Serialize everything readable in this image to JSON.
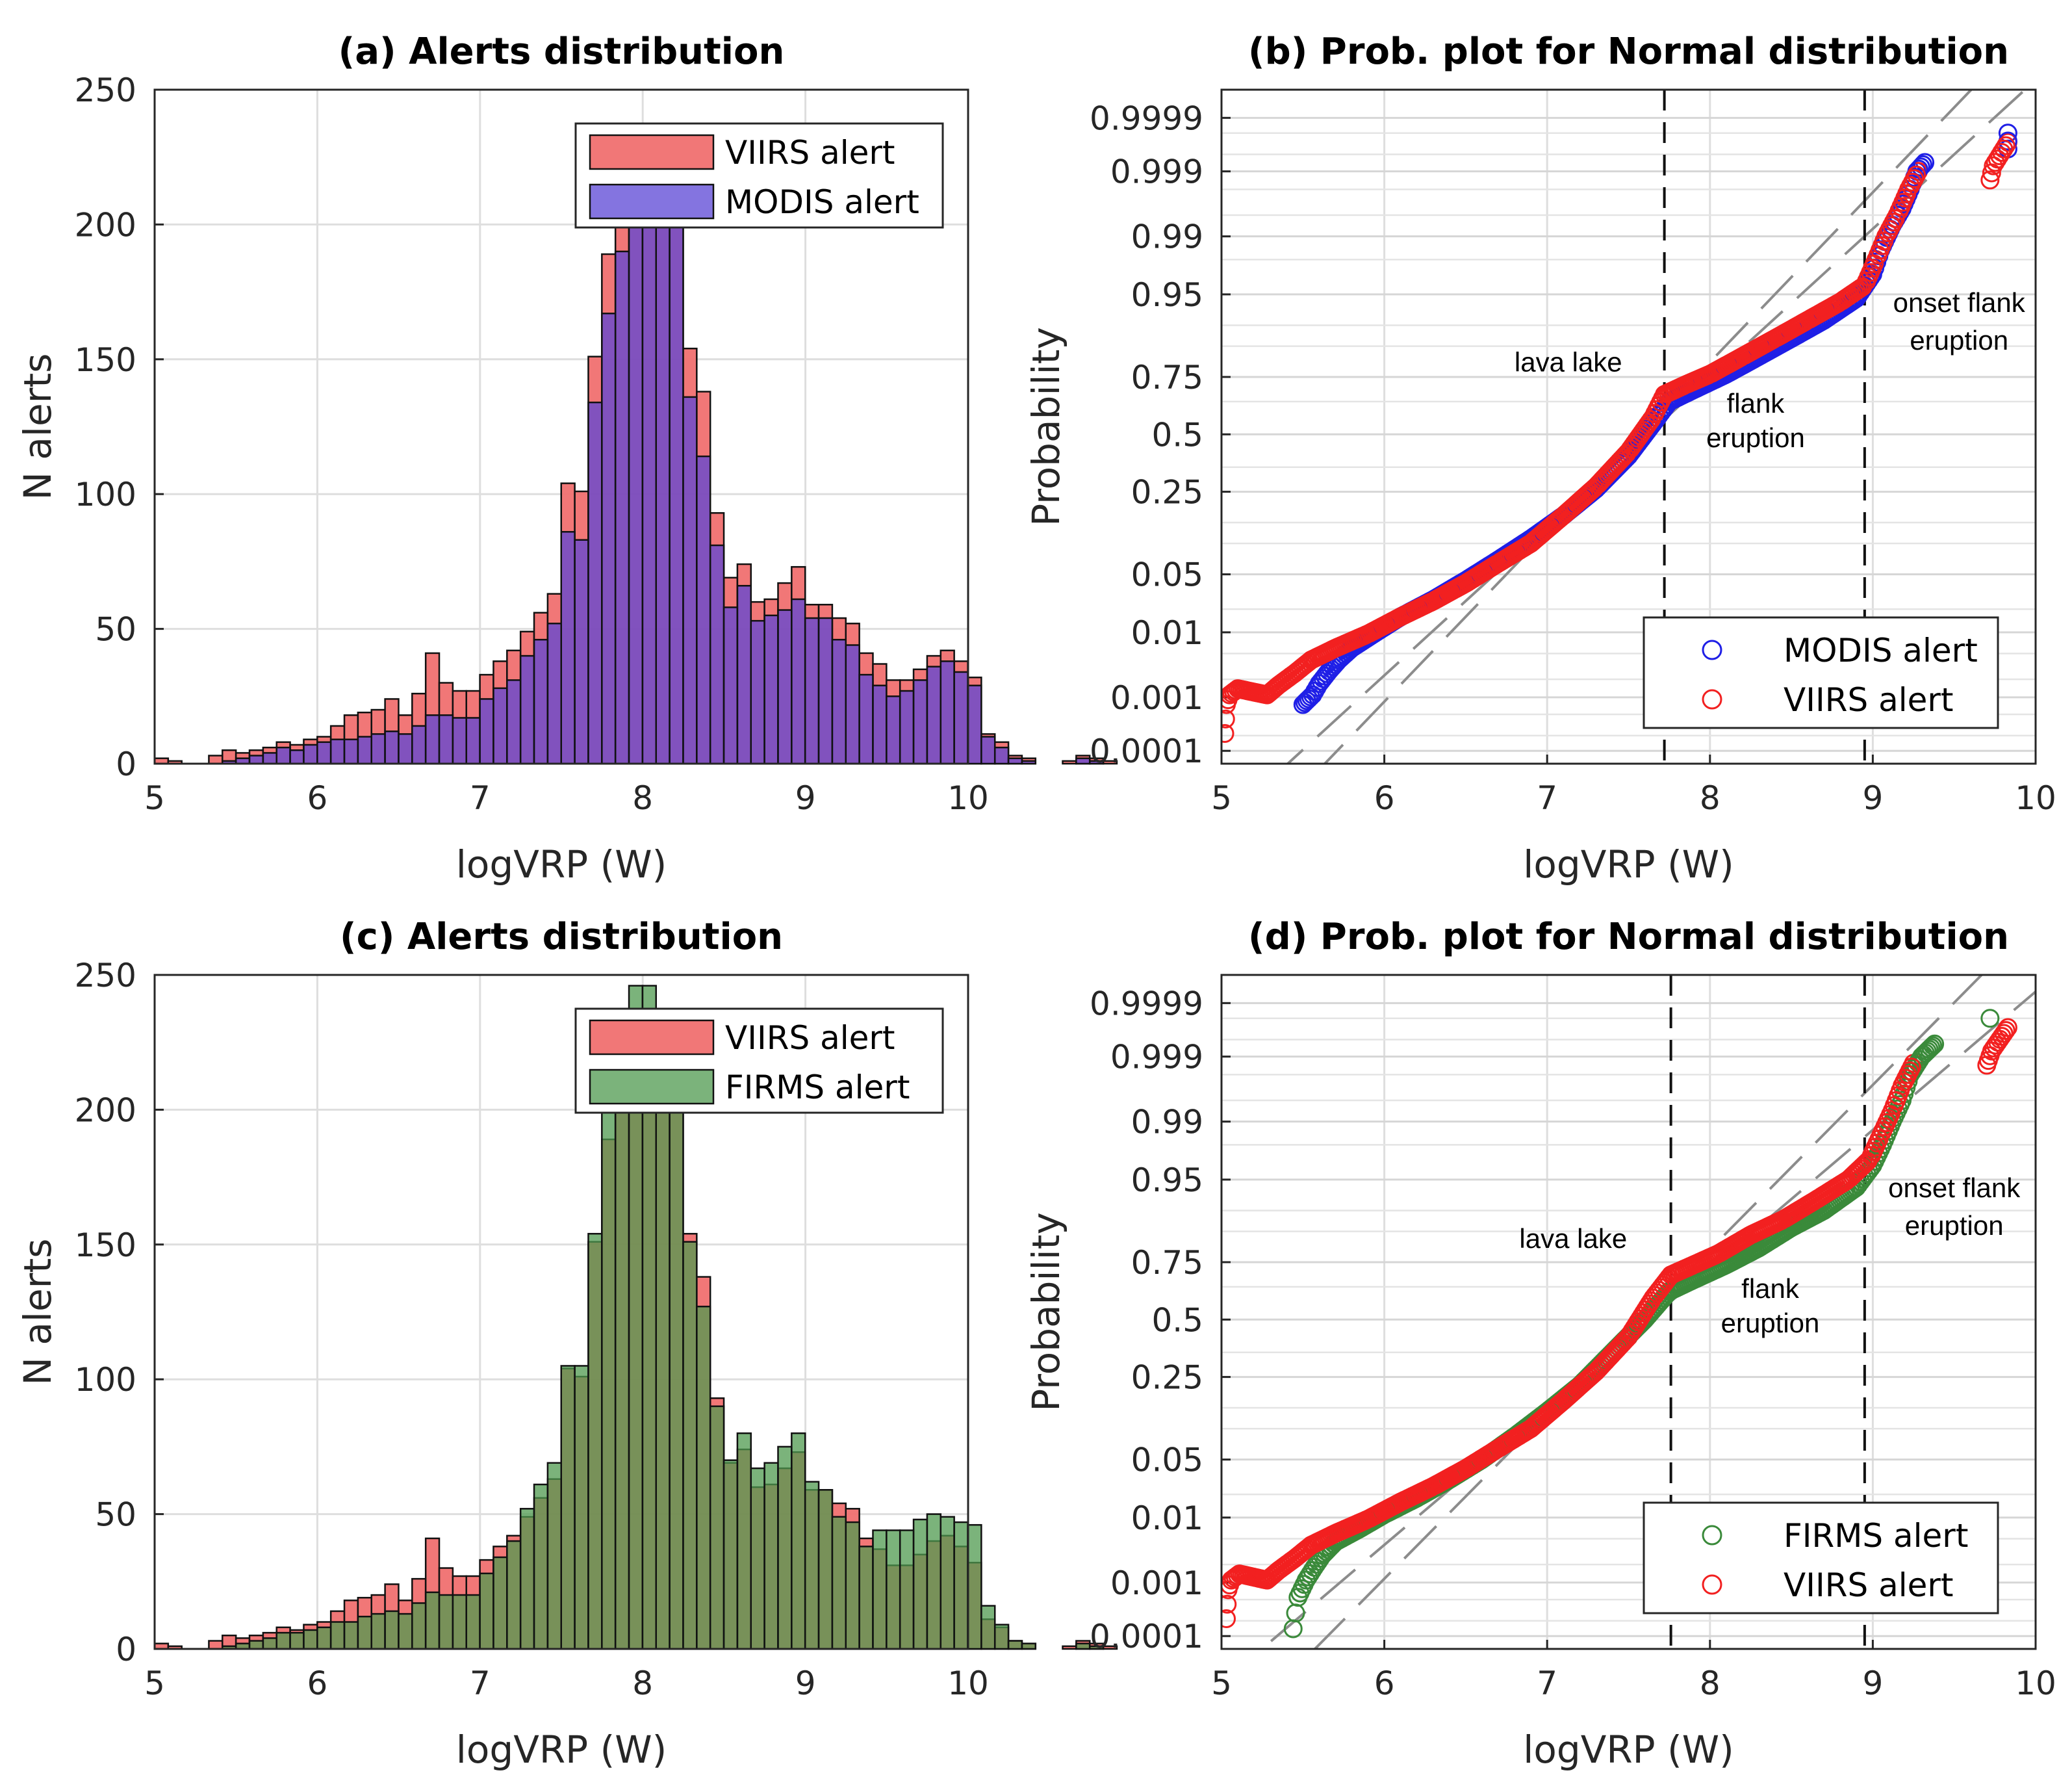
{
  "chart_data": [
    {
      "id": "a",
      "type": "bar",
      "title": "(a) Alerts distribution",
      "xlabel": "logVRP (W)",
      "ylabel": "N alerts",
      "xlim": [
        5,
        10
      ],
      "ylim": [
        0,
        250
      ],
      "xticks": [
        "5",
        "6",
        "7",
        "8",
        "9",
        "10"
      ],
      "yticks": [
        "0",
        "50",
        "100",
        "150",
        "200",
        "250"
      ],
      "grid": true,
      "legend_position": "top-right",
      "bin_start": 5.0,
      "bin_width": 0.0833,
      "series": [
        {
          "name": "VIIRS alert",
          "color": "#f07070",
          "values": [
            2,
            1,
            0,
            0,
            3,
            5,
            4,
            5,
            6,
            8,
            7,
            9,
            10,
            14,
            18,
            19,
            20,
            24,
            18,
            26,
            41,
            30,
            27,
            27,
            33,
            38,
            42,
            49,
            56,
            63,
            104,
            101,
            151,
            189,
            205,
            219,
            228,
            223,
            209,
            154,
            138,
            93,
            69,
            74,
            60,
            61,
            67,
            73,
            59,
            59,
            54,
            52,
            41,
            37,
            31,
            31,
            35,
            40,
            42,
            38,
            32,
            11,
            8,
            3,
            2,
            0,
            0,
            1,
            3,
            2,
            1
          ]
        },
        {
          "name": "MODIS alert",
          "color": "#5b46d6",
          "values": [
            0,
            0,
            0,
            0,
            0,
            1,
            2,
            3,
            4,
            6,
            5,
            7,
            8,
            9,
            9,
            10,
            11,
            12,
            11,
            14,
            18,
            18,
            17,
            17,
            24,
            28,
            31,
            40,
            46,
            52,
            86,
            83,
            134,
            167,
            190,
            208,
            210,
            214,
            199,
            136,
            114,
            81,
            58,
            66,
            53,
            55,
            57,
            61,
            54,
            54,
            46,
            44,
            33,
            29,
            25,
            27,
            31,
            36,
            38,
            34,
            29,
            10,
            6,
            2,
            1,
            0,
            0,
            0,
            2,
            1,
            0
          ]
        }
      ]
    },
    {
      "id": "b",
      "type": "scatter",
      "title": "(b) Prob. plot for Normal distribution",
      "xlabel": "logVRP (W)",
      "ylabel": "Probability",
      "xlim": [
        5,
        10
      ],
      "xticks": [
        "5",
        "6",
        "7",
        "8",
        "9",
        "10"
      ],
      "yticks": [
        "0.0001",
        "0.001",
        "0.01",
        "0.05",
        "0.25",
        "0.5",
        "0.75",
        "0.95",
        "0.99",
        "0.999",
        "0.9999"
      ],
      "y_scale": "normal-probability",
      "grid": true,
      "legend_position": "bottom-right",
      "vlines": [
        7.72,
        8.95
      ],
      "annotations": [
        {
          "text": "lava lake",
          "x": 7.13,
          "p": 0.77
        },
        {
          "text": "flank",
          "x": 8.28,
          "p": 0.6
        },
        {
          "text": "eruption",
          "x": 8.28,
          "p": 0.44
        },
        {
          "text": "onset flank",
          "x": 9.53,
          "p": 0.925
        },
        {
          "text": "eruption",
          "x": 9.53,
          "p": 0.84
        }
      ],
      "series": [
        {
          "name": "MODIS alert",
          "color": "#1f1fe6",
          "marker": "circle-open",
          "x": [
            5.5,
            5.56,
            5.6,
            5.66,
            5.72,
            5.8,
            5.95,
            6.1,
            6.3,
            6.5,
            6.7,
            6.9,
            7.1,
            7.3,
            7.5,
            7.65,
            7.75,
            7.9,
            8.1,
            8.3,
            8.5,
            8.7,
            8.9,
            9.0,
            9.05,
            9.12,
            9.18,
            9.23,
            9.27,
            9.32,
            9.83,
            9.83
          ],
          "p": [
            0.00075,
            0.0011,
            0.0017,
            0.0027,
            0.004,
            0.006,
            0.01,
            0.016,
            0.026,
            0.043,
            0.07,
            0.11,
            0.17,
            0.26,
            0.4,
            0.55,
            0.65,
            0.7,
            0.76,
            0.82,
            0.87,
            0.91,
            0.945,
            0.97,
            0.985,
            0.993,
            0.996,
            0.998,
            0.999,
            0.9993,
            0.9996,
            0.9998
          ]
        },
        {
          "name": "VIIRS alert",
          "color": "#f22020",
          "marker": "circle-open",
          "x": [
            5.02,
            5.03,
            5.05,
            5.1,
            5.28,
            5.35,
            5.45,
            5.55,
            5.7,
            5.9,
            6.1,
            6.3,
            6.5,
            6.7,
            6.9,
            7.1,
            7.3,
            7.5,
            7.65,
            7.72,
            7.85,
            8.0,
            8.2,
            8.4,
            8.6,
            8.8,
            8.95,
            9.02,
            9.08,
            9.15,
            9.22,
            9.28,
            9.72,
            9.74,
            9.83
          ],
          "p": [
            0.00022,
            0.00075,
            0.0011,
            0.0014,
            0.0011,
            0.0016,
            0.0025,
            0.004,
            0.006,
            0.0095,
            0.016,
            0.025,
            0.04,
            0.065,
            0.1,
            0.17,
            0.27,
            0.42,
            0.58,
            0.68,
            0.72,
            0.76,
            0.82,
            0.87,
            0.91,
            0.94,
            0.96,
            0.98,
            0.99,
            0.995,
            0.998,
            0.999,
            0.9986,
            0.9992,
            0.9997
          ]
        }
      ]
    },
    {
      "id": "c",
      "type": "bar",
      "title": "(c) Alerts distribution",
      "xlabel": "logVRP (W)",
      "ylabel": "N alerts",
      "xlim": [
        5,
        10
      ],
      "ylim": [
        0,
        250
      ],
      "xticks": [
        "5",
        "6",
        "7",
        "8",
        "9",
        "10"
      ],
      "yticks": [
        "0",
        "50",
        "100",
        "150",
        "200",
        "250"
      ],
      "grid": true,
      "legend_position": "top-right",
      "bin_start": 5.0,
      "bin_width": 0.0833,
      "series": [
        {
          "name": "VIIRS alert",
          "color": "#f07070",
          "values": [
            2,
            1,
            0,
            0,
            3,
            5,
            4,
            5,
            6,
            8,
            7,
            9,
            10,
            14,
            18,
            19,
            20,
            24,
            18,
            26,
            41,
            30,
            27,
            27,
            33,
            38,
            42,
            49,
            56,
            63,
            104,
            101,
            151,
            189,
            205,
            219,
            228,
            223,
            209,
            154,
            138,
            93,
            69,
            74,
            60,
            61,
            67,
            73,
            59,
            59,
            54,
            52,
            41,
            37,
            31,
            31,
            35,
            40,
            42,
            38,
            32,
            11,
            8,
            3,
            2,
            0,
            0,
            1,
            3,
            2,
            1
          ]
        },
        {
          "name": "FIRMS alert",
          "color": "#4f9a4f",
          "values": [
            0,
            0,
            0,
            0,
            0,
            1,
            2,
            3,
            4,
            6,
            6,
            7,
            8,
            10,
            10,
            12,
            13,
            14,
            13,
            17,
            21,
            20,
            20,
            20,
            28,
            34,
            40,
            52,
            61,
            69,
            105,
            105,
            154,
            207,
            217,
            246,
            246,
            224,
            203,
            151,
            127,
            90,
            70,
            80,
            67,
            69,
            75,
            80,
            62,
            59,
            49,
            47,
            38,
            44,
            44,
            44,
            48,
            50,
            49,
            47,
            46,
            16,
            9,
            3,
            2,
            0,
            0,
            0,
            2,
            1,
            0
          ]
        }
      ]
    },
    {
      "id": "d",
      "type": "scatter",
      "title": "(d) Prob. plot for Normal distribution",
      "xlabel": "logVRP (W)",
      "ylabel": "Probability",
      "xlim": [
        5,
        10
      ],
      "xticks": [
        "5",
        "6",
        "7",
        "8",
        "9",
        "10"
      ],
      "yticks": [
        "0.0001",
        "0.001",
        "0.01",
        "0.05",
        "0.25",
        "0.5",
        "0.75",
        "0.95",
        "0.99",
        "0.999",
        "0.9999"
      ],
      "y_scale": "normal-probability",
      "grid": true,
      "legend_position": "bottom-right",
      "vlines": [
        7.76,
        8.95
      ],
      "annotations": [
        {
          "text": "lava lake",
          "x": 7.16,
          "p": 0.8
        },
        {
          "text": "flank",
          "x": 8.37,
          "p": 0.6
        },
        {
          "text": "eruption",
          "x": 8.37,
          "p": 0.44
        },
        {
          "text": "onset flank",
          "x": 9.5,
          "p": 0.925
        },
        {
          "text": "eruption",
          "x": 9.5,
          "p": 0.84
        }
      ],
      "series": [
        {
          "name": "FIRMS alert",
          "color": "#3a8a3a",
          "marker": "circle-open",
          "x": [
            5.44,
            5.47,
            5.52,
            5.57,
            5.62,
            5.7,
            5.85,
            6.0,
            6.2,
            6.4,
            6.6,
            6.8,
            7.0,
            7.2,
            7.4,
            7.6,
            7.75,
            7.9,
            8.1,
            8.3,
            8.5,
            8.7,
            8.9,
            9.0,
            9.06,
            9.12,
            9.18,
            9.23,
            9.3,
            9.38,
            9.72
          ],
          "p": [
            0.00014,
            0.00055,
            0.0011,
            0.0018,
            0.0028,
            0.0045,
            0.007,
            0.011,
            0.018,
            0.03,
            0.05,
            0.085,
            0.14,
            0.22,
            0.35,
            0.5,
            0.63,
            0.68,
            0.74,
            0.8,
            0.86,
            0.9,
            0.94,
            0.965,
            0.98,
            0.99,
            0.995,
            0.998,
            0.999,
            0.9994,
            0.9998
          ]
        },
        {
          "name": "VIIRS alert",
          "color": "#f22020",
          "marker": "circle-open",
          "x": [
            5.03,
            5.04,
            5.06,
            5.11,
            5.28,
            5.35,
            5.45,
            5.55,
            5.7,
            5.9,
            6.1,
            6.3,
            6.5,
            6.7,
            6.9,
            7.1,
            7.3,
            7.5,
            7.65,
            7.76,
            7.9,
            8.05,
            8.25,
            8.45,
            8.65,
            8.85,
            8.98,
            9.05,
            9.12,
            9.18,
            9.25,
            9.7,
            9.73,
            9.83
          ],
          "p": [
            0.00022,
            0.00075,
            0.0011,
            0.0014,
            0.0011,
            0.0016,
            0.0025,
            0.004,
            0.006,
            0.0095,
            0.016,
            0.025,
            0.04,
            0.065,
            0.1,
            0.17,
            0.27,
            0.42,
            0.6,
            0.7,
            0.74,
            0.78,
            0.84,
            0.88,
            0.92,
            0.95,
            0.97,
            0.985,
            0.993,
            0.997,
            0.9987,
            0.9986,
            0.9992,
            0.9997
          ]
        }
      ]
    }
  ]
}
